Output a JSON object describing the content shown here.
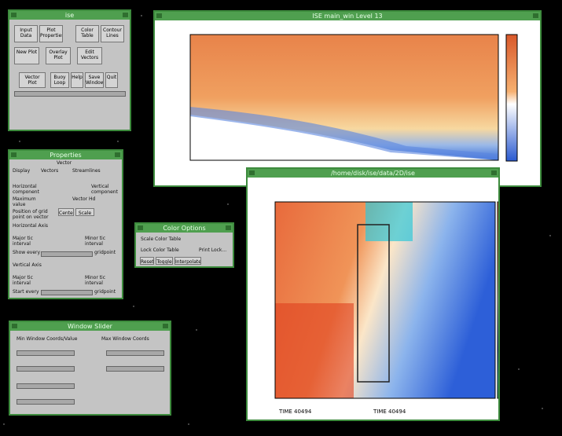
{
  "main_window": {
    "title": "ise",
    "buttons": [
      "Input Data",
      "Plot Properties",
      "Color Table",
      "Contour Lines",
      "New Plot",
      "Overlay Plot",
      "Edit Vectors",
      "Vector Plot",
      "Buoy Loop",
      "Help",
      "Save Window",
      "Quit"
    ]
  },
  "properties": {
    "title": "Properties",
    "heading": "Vector",
    "display": "Display",
    "options": [
      "Vectors",
      "Streamlines"
    ],
    "labels": [
      "Horizontal component",
      "Vertical component",
      "Maximum value",
      "Vector Hd",
      "Position of grid point on vector",
      "Center",
      "Scale",
      "Horizontal Axis",
      "Major tic interval",
      "Minor tic interval",
      "Show every",
      "gridpoint",
      "Vertical Axis",
      "Major tic interval",
      "Minor tic interval",
      "Start every",
      "gridpoint"
    ]
  },
  "color_options": {
    "title": "Color Options",
    "labels": [
      "Scale Color Table",
      "Lock Color Table"
    ],
    "buttons": [
      "Reset",
      "Toggle",
      "Interpolate",
      "Print Lock..."
    ]
  },
  "window_slider": {
    "title": "Window Slider",
    "labels": [
      "Min Window Coords/Value",
      "Max Window Coords"
    ]
  },
  "plot_window": {
    "title": "ISE main_win Level 13"
  },
  "view_window": {
    "title": "/home/disk/ise/data/2D/ise",
    "footer": [
      "TIME 40494",
      "TIME 40494"
    ]
  }
}
